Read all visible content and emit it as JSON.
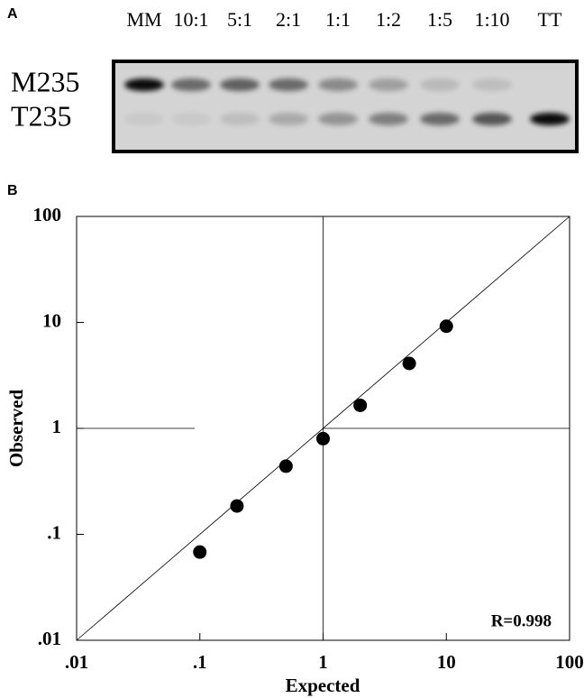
{
  "panel_a": {
    "label": "A",
    "lanes": [
      "MM",
      "10:1",
      "5:1",
      "2:1",
      "1:1",
      "1:2",
      "1:5",
      "1:10",
      "TT"
    ],
    "rows": [
      "M235",
      "T235"
    ]
  },
  "chart_data": {
    "type": "scatter",
    "panel_label": "B",
    "x_label": "Expected",
    "y_label": "Observed",
    "annotation": "R=0.998",
    "log_x": true,
    "log_y": true,
    "color": "#000000",
    "xlim": [
      0.01,
      100
    ],
    "ylim": [
      0.01,
      100
    ],
    "xticks": [
      {
        "value": 0.01,
        "label": ".01"
      },
      {
        "value": 0.1,
        "label": ".1"
      },
      1,
      10,
      100
    ],
    "yticks": [
      {
        "value": 0.01,
        "label": ".01"
      },
      {
        "value": 0.1,
        "label": ".1"
      },
      1,
      10,
      100
    ],
    "x": [
      0.1,
      0.2,
      0.5,
      1,
      2,
      5,
      10
    ],
    "values": [
      0.068,
      0.185,
      0.44,
      0.8,
      1.65,
      4.1,
      9.2
    ]
  }
}
